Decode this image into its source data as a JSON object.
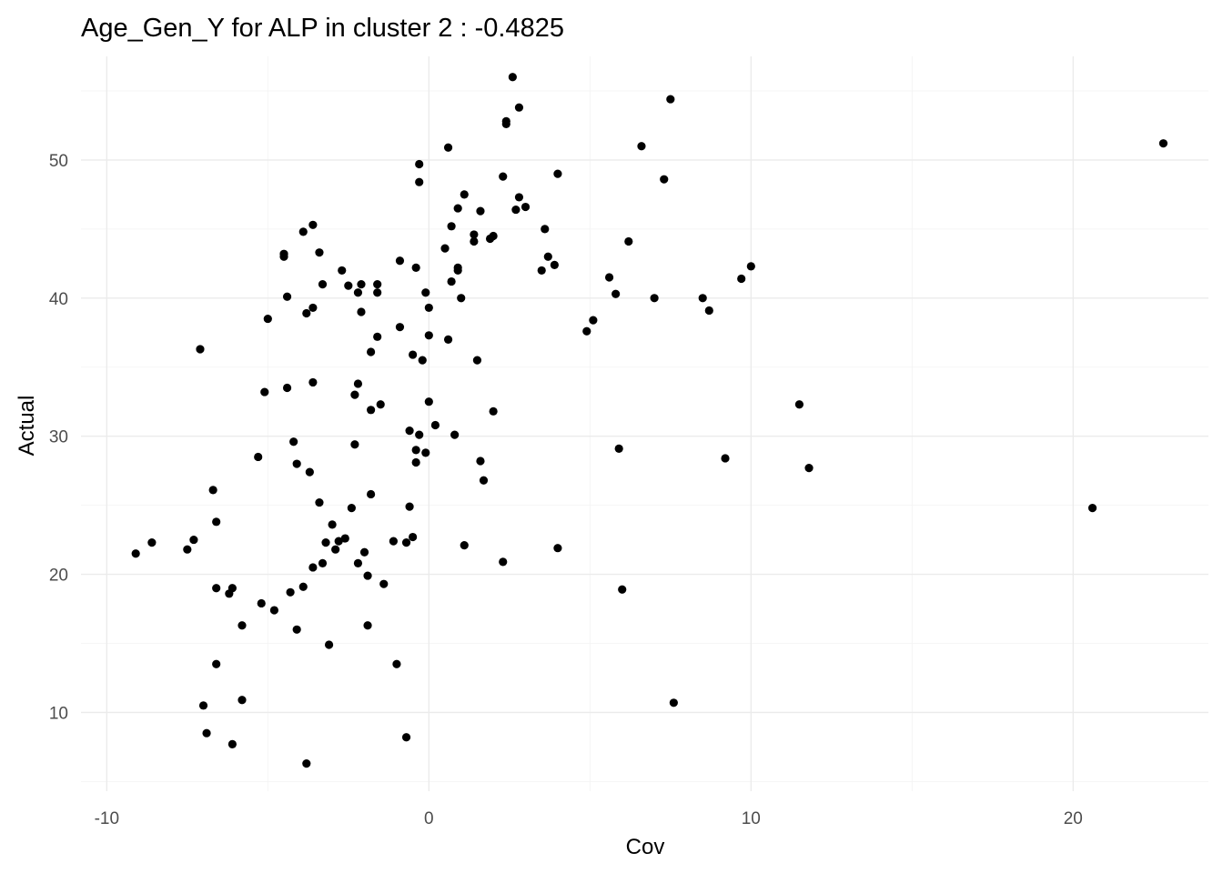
{
  "chart_data": {
    "type": "scatter",
    "title": "Age_Gen_Y for ALP in cluster 2 : -0.4825",
    "xlabel": "Cov",
    "ylabel": "Actual",
    "xlim": [
      -10.8,
      24.2
    ],
    "ylim": [
      4.3,
      57.5
    ],
    "x_ticks": [
      -10,
      0,
      10,
      20
    ],
    "x_tick_labels": [
      "-10",
      "0",
      "10",
      "20"
    ],
    "y_ticks": [
      10,
      20,
      30,
      40,
      50
    ],
    "y_tick_labels": [
      "10",
      "20",
      "30",
      "40",
      "50"
    ],
    "x_minor_ticks": [
      -5,
      5,
      15
    ],
    "y_minor_ticks": [
      5,
      15,
      25,
      35,
      45,
      55
    ],
    "grid": true,
    "legend": "none",
    "point_color": "#000000",
    "points": [
      {
        "x": -9.1,
        "y": 21.5
      },
      {
        "x": -8.6,
        "y": 22.3
      },
      {
        "x": -7.5,
        "y": 21.8
      },
      {
        "x": -7.3,
        "y": 22.5
      },
      {
        "x": -7.0,
        "y": 10.5
      },
      {
        "x": -6.9,
        "y": 8.5
      },
      {
        "x": -7.1,
        "y": 36.3
      },
      {
        "x": -6.7,
        "y": 26.1
      },
      {
        "x": -6.6,
        "y": 23.8
      },
      {
        "x": -6.6,
        "y": 19.0
      },
      {
        "x": -6.6,
        "y": 13.5
      },
      {
        "x": -6.2,
        "y": 18.6
      },
      {
        "x": -6.1,
        "y": 19.0
      },
      {
        "x": -6.1,
        "y": 7.7
      },
      {
        "x": -5.8,
        "y": 16.3
      },
      {
        "x": -5.8,
        "y": 10.9
      },
      {
        "x": -5.3,
        "y": 28.5
      },
      {
        "x": -5.2,
        "y": 17.9
      },
      {
        "x": -5.1,
        "y": 33.2
      },
      {
        "x": -5.0,
        "y": 38.5
      },
      {
        "x": -4.8,
        "y": 17.4
      },
      {
        "x": -4.5,
        "y": 43.2
      },
      {
        "x": -4.5,
        "y": 43.0
      },
      {
        "x": -4.4,
        "y": 40.1
      },
      {
        "x": -4.4,
        "y": 33.5
      },
      {
        "x": -4.3,
        "y": 18.7
      },
      {
        "x": -4.2,
        "y": 29.6
      },
      {
        "x": -4.1,
        "y": 28.0
      },
      {
        "x": -4.1,
        "y": 16.0
      },
      {
        "x": -3.9,
        "y": 44.8
      },
      {
        "x": -3.8,
        "y": 38.9
      },
      {
        "x": -3.9,
        "y": 19.1
      },
      {
        "x": -3.8,
        "y": 6.3
      },
      {
        "x": -3.7,
        "y": 27.4
      },
      {
        "x": -3.6,
        "y": 45.3
      },
      {
        "x": -3.6,
        "y": 39.3
      },
      {
        "x": -3.6,
        "y": 33.9
      },
      {
        "x": -3.6,
        "y": 20.5
      },
      {
        "x": -3.4,
        "y": 43.3
      },
      {
        "x": -3.4,
        "y": 25.2
      },
      {
        "x": -3.3,
        "y": 41.0
      },
      {
        "x": -3.3,
        "y": 20.8
      },
      {
        "x": -3.2,
        "y": 22.3
      },
      {
        "x": -3.1,
        "y": 14.9
      },
      {
        "x": -3.0,
        "y": 23.6
      },
      {
        "x": -2.9,
        "y": 21.8
      },
      {
        "x": -2.8,
        "y": 22.4
      },
      {
        "x": -2.7,
        "y": 42.0
      },
      {
        "x": -2.6,
        "y": 22.6
      },
      {
        "x": -2.5,
        "y": 40.9
      },
      {
        "x": -2.4,
        "y": 24.8
      },
      {
        "x": -2.3,
        "y": 29.4
      },
      {
        "x": -2.3,
        "y": 33.0
      },
      {
        "x": -2.2,
        "y": 40.4
      },
      {
        "x": -2.2,
        "y": 33.8
      },
      {
        "x": -2.2,
        "y": 20.8
      },
      {
        "x": -2.1,
        "y": 41.0
      },
      {
        "x": -2.1,
        "y": 39.0
      },
      {
        "x": -2.0,
        "y": 21.6
      },
      {
        "x": -1.9,
        "y": 19.9
      },
      {
        "x": -1.9,
        "y": 16.3
      },
      {
        "x": -1.8,
        "y": 25.8
      },
      {
        "x": -1.8,
        "y": 36.1
      },
      {
        "x": -1.8,
        "y": 31.9
      },
      {
        "x": -1.6,
        "y": 40.4
      },
      {
        "x": -1.6,
        "y": 41.0
      },
      {
        "x": -1.6,
        "y": 37.2
      },
      {
        "x": -1.5,
        "y": 32.3
      },
      {
        "x": -1.4,
        "y": 19.3
      },
      {
        "x": -1.1,
        "y": 22.4
      },
      {
        "x": -1.0,
        "y": 13.5
      },
      {
        "x": -0.9,
        "y": 42.7
      },
      {
        "x": -0.9,
        "y": 37.9
      },
      {
        "x": -0.7,
        "y": 8.2
      },
      {
        "x": -0.7,
        "y": 22.3
      },
      {
        "x": -0.6,
        "y": 30.4
      },
      {
        "x": -0.6,
        "y": 24.9
      },
      {
        "x": -0.5,
        "y": 35.9
      },
      {
        "x": -0.5,
        "y": 22.7
      },
      {
        "x": -0.4,
        "y": 42.2
      },
      {
        "x": -0.4,
        "y": 29.0
      },
      {
        "x": -0.4,
        "y": 28.1
      },
      {
        "x": -0.3,
        "y": 49.7
      },
      {
        "x": -0.3,
        "y": 48.4
      },
      {
        "x": -0.3,
        "y": 30.1
      },
      {
        "x": -0.2,
        "y": 35.5
      },
      {
        "x": -0.1,
        "y": 40.4
      },
      {
        "x": -0.1,
        "y": 28.8
      },
      {
        "x": 0.0,
        "y": 39.3
      },
      {
        "x": 0.0,
        "y": 37.3
      },
      {
        "x": 0.0,
        "y": 32.5
      },
      {
        "x": 0.2,
        "y": 30.8
      },
      {
        "x": 0.5,
        "y": 43.6
      },
      {
        "x": 0.6,
        "y": 37.0
      },
      {
        "x": 0.6,
        "y": 50.9
      },
      {
        "x": 0.7,
        "y": 45.2
      },
      {
        "x": 0.7,
        "y": 41.2
      },
      {
        "x": 0.8,
        "y": 30.1
      },
      {
        "x": 0.9,
        "y": 42.2
      },
      {
        "x": 0.9,
        "y": 42.0
      },
      {
        "x": 0.9,
        "y": 46.5
      },
      {
        "x": 1.0,
        "y": 40.0
      },
      {
        "x": 1.1,
        "y": 47.5
      },
      {
        "x": 1.1,
        "y": 22.1
      },
      {
        "x": 1.4,
        "y": 44.6
      },
      {
        "x": 1.4,
        "y": 44.1
      },
      {
        "x": 1.5,
        "y": 35.5
      },
      {
        "x": 1.6,
        "y": 28.2
      },
      {
        "x": 1.6,
        "y": 46.3
      },
      {
        "x": 1.7,
        "y": 26.8
      },
      {
        "x": 1.9,
        "y": 44.3
      },
      {
        "x": 2.0,
        "y": 44.5
      },
      {
        "x": 2.0,
        "y": 31.8
      },
      {
        "x": 2.3,
        "y": 48.8
      },
      {
        "x": 2.3,
        "y": 20.9
      },
      {
        "x": 2.4,
        "y": 52.8
      },
      {
        "x": 2.4,
        "y": 52.6
      },
      {
        "x": 2.6,
        "y": 56.0
      },
      {
        "x": 2.7,
        "y": 46.4
      },
      {
        "x": 2.8,
        "y": 47.3
      },
      {
        "x": 2.8,
        "y": 53.8
      },
      {
        "x": 3.0,
        "y": 46.6
      },
      {
        "x": 3.5,
        "y": 42.0
      },
      {
        "x": 3.6,
        "y": 45.0
      },
      {
        "x": 3.7,
        "y": 43.0
      },
      {
        "x": 3.9,
        "y": 42.4
      },
      {
        "x": 4.0,
        "y": 49.0
      },
      {
        "x": 4.0,
        "y": 21.9
      },
      {
        "x": 4.9,
        "y": 37.6
      },
      {
        "x": 5.1,
        "y": 38.4
      },
      {
        "x": 5.6,
        "y": 41.5
      },
      {
        "x": 5.8,
        "y": 40.3
      },
      {
        "x": 5.9,
        "y": 29.1
      },
      {
        "x": 6.0,
        "y": 18.9
      },
      {
        "x": 6.2,
        "y": 44.1
      },
      {
        "x": 6.6,
        "y": 51.0
      },
      {
        "x": 7.0,
        "y": 40.0
      },
      {
        "x": 7.3,
        "y": 48.6
      },
      {
        "x": 7.5,
        "y": 54.4
      },
      {
        "x": 7.6,
        "y": 10.7
      },
      {
        "x": 8.5,
        "y": 40.0
      },
      {
        "x": 8.7,
        "y": 39.1
      },
      {
        "x": 9.2,
        "y": 28.4
      },
      {
        "x": 9.7,
        "y": 41.4
      },
      {
        "x": 10.0,
        "y": 42.3
      },
      {
        "x": 11.5,
        "y": 32.3
      },
      {
        "x": 11.8,
        "y": 27.7
      },
      {
        "x": 20.6,
        "y": 24.8
      },
      {
        "x": 22.8,
        "y": 51.2
      }
    ]
  }
}
